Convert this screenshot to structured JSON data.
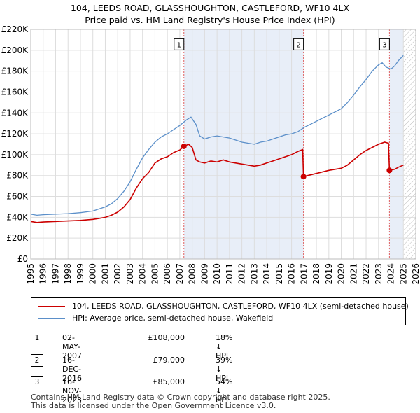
{
  "title_line1": "104, LEEDS ROAD, GLASSHOUGHTON, CASTLEFORD, WF10 4LX",
  "title_line2": "Price paid vs. HM Land Registry's House Price Index (HPI)",
  "colors": {
    "property": "#cc0000",
    "hpi": "#5b8fc9",
    "shade": "#e8eef8",
    "hatch": "#bbbbbb",
    "marker_line": "#e06060"
  },
  "chart_data": {
    "type": "line",
    "title": "Price paid vs. HM Land Registry's House Price Index (HPI)",
    "xlabel": "",
    "ylabel": "",
    "xlim": [
      1995,
      2026
    ],
    "ylim": [
      0,
      220000
    ],
    "x_ticks": [
      "1995",
      "1996",
      "1997",
      "1998",
      "1999",
      "2000",
      "2001",
      "2002",
      "2003",
      "2004",
      "2005",
      "2006",
      "2007",
      "2008",
      "2009",
      "2010",
      "2011",
      "2012",
      "2013",
      "2014",
      "2015",
      "2016",
      "2017",
      "2018",
      "2019",
      "2020",
      "2021",
      "2022",
      "2023",
      "2024",
      "2025",
      "2026"
    ],
    "y_ticks": [
      "£0",
      "£20K",
      "£40K",
      "£60K",
      "£80K",
      "£100K",
      "£120K",
      "£140K",
      "£160K",
      "£180K",
      "£200K",
      "£220K"
    ],
    "series": [
      {
        "name": "104, LEEDS ROAD, GLASSHOUGHTON, CASTLEFORD, WF10 4LX (semi-detached house)",
        "x": [
          1995.0,
          1995.5,
          1996.0,
          1997.0,
          1998.0,
          1999.0,
          2000.0,
          2000.5,
          2001.0,
          2001.5,
          2002.0,
          2002.5,
          2003.0,
          2003.5,
          2004.0,
          2004.5,
          2005.0,
          2005.5,
          2006.0,
          2006.5,
          2007.0,
          2007.33,
          2007.7,
          2008.0,
          2008.3,
          2008.6,
          2009.0,
          2009.5,
          2010.0,
          2010.5,
          2011.0,
          2011.5,
          2012.0,
          2012.5,
          2013.0,
          2013.5,
          2014.0,
          2014.5,
          2015.0,
          2015.5,
          2016.0,
          2016.5,
          2016.9,
          2016.96,
          2017.3,
          2018.0,
          2019.0,
          2020.0,
          2020.5,
          2021.0,
          2021.5,
          2022.0,
          2022.5,
          2023.0,
          2023.5,
          2023.8,
          2023.88,
          2024.3,
          2024.6,
          2025.0
        ],
        "y": [
          36000,
          35000,
          35500,
          36000,
          36500,
          37000,
          38000,
          39000,
          40000,
          42000,
          45000,
          50000,
          57000,
          68000,
          77000,
          83000,
          92000,
          96000,
          98000,
          102000,
          104500,
          108000,
          110000,
          107000,
          95000,
          93000,
          92000,
          94000,
          93000,
          95000,
          93000,
          92000,
          91000,
          90000,
          89000,
          90000,
          92000,
          94000,
          96000,
          98000,
          100000,
          103000,
          105000,
          79000,
          80000,
          82000,
          85000,
          87000,
          90000,
          95000,
          100000,
          104000,
          107000,
          110000,
          112000,
          111000,
          85000,
          86000,
          88000,
          90000
        ]
      },
      {
        "name": "HPI: Average price, semi-detached house, Wakefield",
        "x": [
          1995.0,
          1995.5,
          1996.0,
          1997.0,
          1998.0,
          1999.0,
          2000.0,
          2000.5,
          2001.0,
          2001.5,
          2002.0,
          2002.5,
          2003.0,
          2003.5,
          2004.0,
          2004.5,
          2005.0,
          2005.5,
          2006.0,
          2006.5,
          2007.0,
          2007.5,
          2007.9,
          2008.3,
          2008.6,
          2009.0,
          2009.5,
          2010.0,
          2010.5,
          2011.0,
          2011.5,
          2012.0,
          2012.5,
          2013.0,
          2013.5,
          2014.0,
          2014.5,
          2015.0,
          2015.5,
          2016.0,
          2016.5,
          2017.0,
          2017.5,
          2018.0,
          2018.5,
          2019.0,
          2019.5,
          2020.0,
          2020.5,
          2021.0,
          2021.5,
          2022.0,
          2022.5,
          2023.0,
          2023.3,
          2023.6,
          2024.0,
          2024.3,
          2024.6,
          2025.0
        ],
        "y": [
          43000,
          42000,
          42500,
          43000,
          43500,
          44500,
          46000,
          48000,
          50000,
          53000,
          58000,
          65000,
          74000,
          86000,
          97000,
          105000,
          112000,
          117000,
          120000,
          124000,
          128000,
          133000,
          136000,
          129000,
          118000,
          115000,
          117000,
          118000,
          117000,
          116000,
          114000,
          112000,
          111000,
          110000,
          112000,
          113000,
          115000,
          117000,
          119000,
          120000,
          122000,
          126000,
          129000,
          132000,
          135000,
          138000,
          141000,
          144000,
          150000,
          157000,
          165000,
          172000,
          180000,
          186000,
          188000,
          184000,
          182000,
          185000,
          190000,
          195000
        ]
      }
    ],
    "sales": [
      {
        "label": "1",
        "x": 2007.33,
        "y": 108000
      },
      {
        "label": "2",
        "x": 2016.96,
        "y": 79000
      },
      {
        "label": "3",
        "x": 2023.88,
        "y": 85000
      }
    ],
    "future_start": 2025.0
  },
  "legend": {
    "property": "104, LEEDS ROAD, GLASSHOUGHTON, CASTLEFORD, WF10 4LX (semi-detached house)",
    "hpi": "HPI: Average price, semi-detached house, Wakefield"
  },
  "transactions": [
    {
      "num": "1",
      "date": "02-MAY-2007",
      "price": "£108,000",
      "hpi": "18% ↓ HPI"
    },
    {
      "num": "2",
      "date": "16-DEC-2016",
      "price": "£79,000",
      "hpi": "39% ↓ HPI"
    },
    {
      "num": "3",
      "date": "16-NOV-2023",
      "price": "£85,000",
      "hpi": "54% ↓ HPI"
    }
  ],
  "footer": {
    "line1": "Contains HM Land Registry data © Crown copyright and database right 2025.",
    "line2": "This data is licensed under the Open Government Licence v3.0."
  }
}
